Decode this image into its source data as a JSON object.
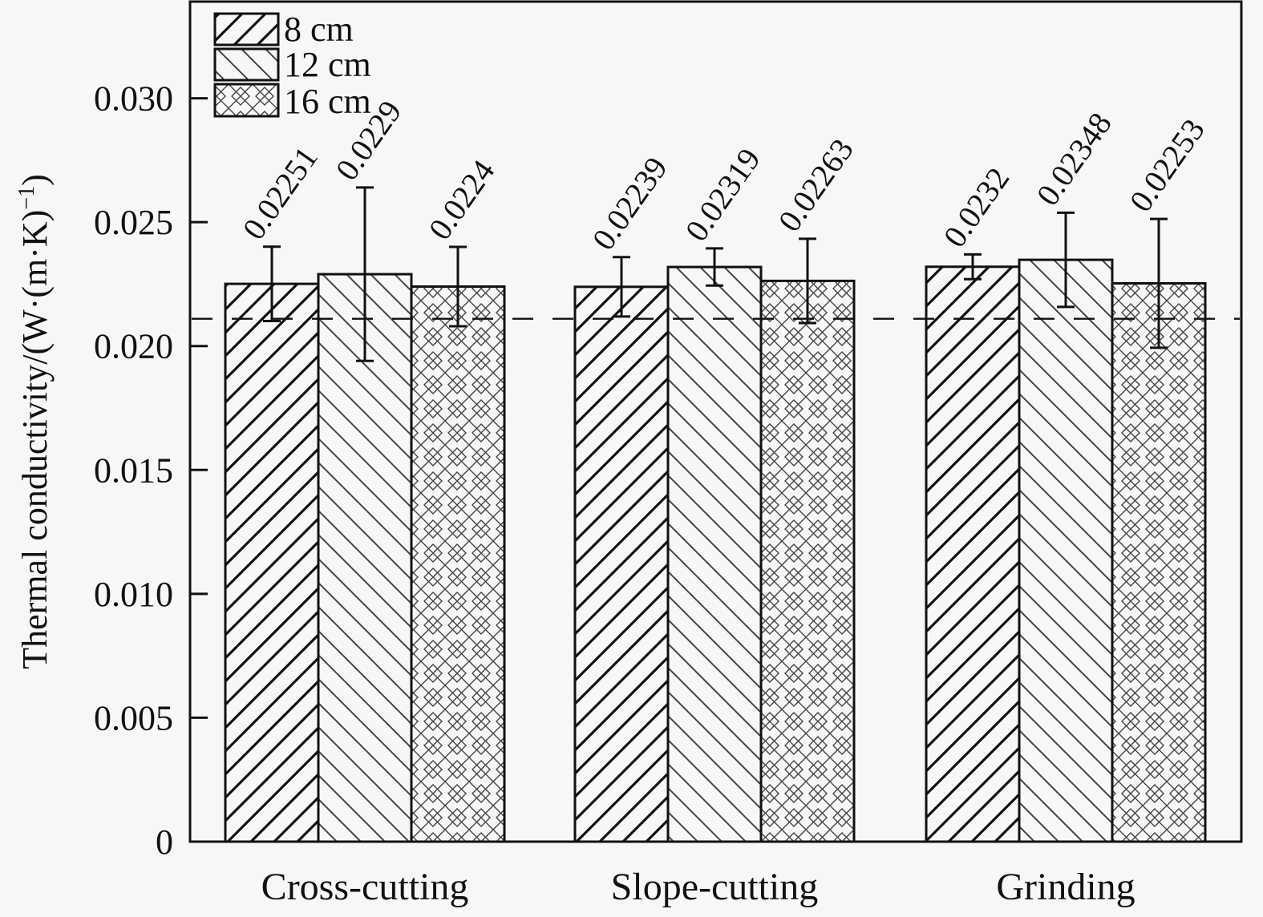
{
  "chart_data": {
    "type": "bar",
    "title": "",
    "xlabel": "",
    "ylabel": "Thermal conductivity/(W·(m·K)",
    "ylabel_sup": "−1",
    "ylabel_close": ")",
    "ylim": [
      0,
      0.0339
    ],
    "yticks": [
      0,
      0.005,
      0.01,
      0.015,
      0.02,
      0.025,
      0.03
    ],
    "ytick_labels": [
      "0",
      "0.005",
      "0.010",
      "0.015",
      "0.020",
      "0.025",
      "0.030"
    ],
    "categories": [
      "Cross-cutting",
      "Slope-cutting",
      "Grinding"
    ],
    "series": [
      {
        "name": "8 cm",
        "pattern": "diag-up-thick",
        "values": [
          0.02251,
          0.02239,
          0.0232
        ],
        "errors": [
          0.0015,
          0.0012,
          0.0005
        ],
        "labels": [
          "0.02251",
          "0.02239",
          "0.0232"
        ]
      },
      {
        "name": "12 cm",
        "pattern": "diag-down-thin",
        "values": [
          0.0229,
          0.02319,
          0.02348
        ],
        "errors": [
          0.0035,
          0.00075,
          0.0019
        ],
        "labels": [
          "0.0229",
          "0.02319",
          "0.02348"
        ]
      },
      {
        "name": "16 cm",
        "pattern": "crosshatch",
        "values": [
          0.0224,
          0.02263,
          0.02253
        ],
        "errors": [
          0.0016,
          0.0017,
          0.0026
        ],
        "labels": [
          "0.0224",
          "0.02263",
          "0.02253"
        ]
      }
    ],
    "reference_line": {
      "value": 0.0211,
      "style": "dashed"
    },
    "legend": {
      "position": "top-left",
      "entries": [
        "8 cm",
        "12 cm",
        "16 cm"
      ]
    },
    "grid": false,
    "colors": {
      "ink": "#111111",
      "background": "#f7f7f7",
      "hatch_light": "#555555"
    }
  }
}
